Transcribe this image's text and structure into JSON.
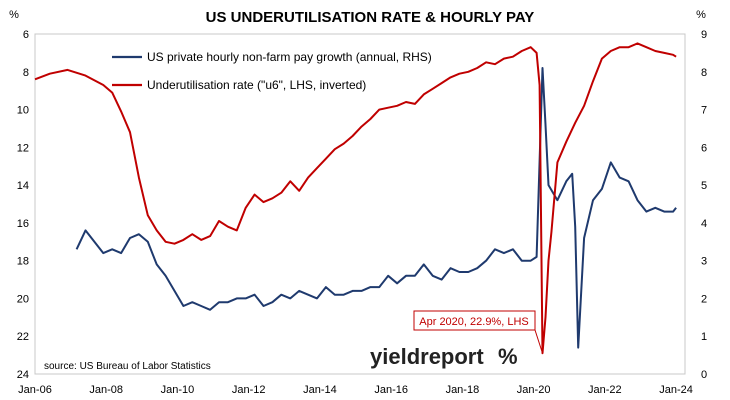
{
  "chart_data": {
    "type": "line",
    "title": "US UNDERUTILISATION RATE & HOURLY PAY",
    "left_axis": {
      "unit": "%",
      "range": [
        6,
        24
      ],
      "inverted": true,
      "ticks": [
        6,
        8,
        10,
        12,
        14,
        16,
        18,
        20,
        22,
        24
      ]
    },
    "right_axis": {
      "unit": "%",
      "range": [
        0,
        9
      ],
      "ticks": [
        0,
        1,
        2,
        3,
        4,
        5,
        6,
        7,
        8,
        9
      ]
    },
    "x_axis": {
      "range": [
        "2006-01",
        "2024-04"
      ],
      "tick_labels": [
        "Jan-06",
        "Jan-08",
        "Jan-10",
        "Jan-12",
        "Jan-14",
        "Jan-16",
        "Jan-18",
        "Jan-20",
        "Jan-22",
        "Jan-24"
      ]
    },
    "grid": false,
    "legend_position": "top-left",
    "series": [
      {
        "name": "US private hourly non-farm pay growth (annual, RHS)",
        "axis": "right",
        "color": "#1f3a6e",
        "points": [
          [
            "2007-03",
            3.3
          ],
          [
            "2007-06",
            3.8
          ],
          [
            "2007-09",
            3.5
          ],
          [
            "2007-12",
            3.2
          ],
          [
            "2008-03",
            3.3
          ],
          [
            "2008-06",
            3.2
          ],
          [
            "2008-09",
            3.6
          ],
          [
            "2008-12",
            3.7
          ],
          [
            "2009-03",
            3.5
          ],
          [
            "2009-06",
            2.9
          ],
          [
            "2009-09",
            2.6
          ],
          [
            "2009-12",
            2.2
          ],
          [
            "2010-03",
            1.8
          ],
          [
            "2010-06",
            1.9
          ],
          [
            "2010-09",
            1.8
          ],
          [
            "2010-12",
            1.7
          ],
          [
            "2011-03",
            1.9
          ],
          [
            "2011-06",
            1.9
          ],
          [
            "2011-09",
            2.0
          ],
          [
            "2011-12",
            2.0
          ],
          [
            "2012-03",
            2.1
          ],
          [
            "2012-06",
            1.8
          ],
          [
            "2012-09",
            1.9
          ],
          [
            "2012-12",
            2.1
          ],
          [
            "2013-03",
            2.0
          ],
          [
            "2013-06",
            2.2
          ],
          [
            "2013-09",
            2.1
          ],
          [
            "2013-12",
            2.0
          ],
          [
            "2014-03",
            2.3
          ],
          [
            "2014-06",
            2.1
          ],
          [
            "2014-09",
            2.1
          ],
          [
            "2014-12",
            2.2
          ],
          [
            "2015-03",
            2.2
          ],
          [
            "2015-06",
            2.3
          ],
          [
            "2015-09",
            2.3
          ],
          [
            "2015-12",
            2.6
          ],
          [
            "2016-03",
            2.4
          ],
          [
            "2016-06",
            2.6
          ],
          [
            "2016-09",
            2.6
          ],
          [
            "2016-12",
            2.9
          ],
          [
            "2017-03",
            2.6
          ],
          [
            "2017-06",
            2.5
          ],
          [
            "2017-09",
            2.8
          ],
          [
            "2017-12",
            2.7
          ],
          [
            "2018-03",
            2.7
          ],
          [
            "2018-06",
            2.8
          ],
          [
            "2018-09",
            3.0
          ],
          [
            "2018-12",
            3.3
          ],
          [
            "2019-03",
            3.2
          ],
          [
            "2019-06",
            3.3
          ],
          [
            "2019-09",
            3.0
          ],
          [
            "2019-12",
            3.0
          ],
          [
            "2020-02",
            3.1
          ],
          [
            "2020-04",
            8.1
          ],
          [
            "2020-05",
            6.6
          ],
          [
            "2020-06",
            5.0
          ],
          [
            "2020-09",
            4.6
          ],
          [
            "2020-12",
            5.1
          ],
          [
            "2021-02",
            5.3
          ],
          [
            "2021-03",
            3.9
          ],
          [
            "2021-04",
            0.7
          ],
          [
            "2021-06",
            3.6
          ],
          [
            "2021-09",
            4.6
          ],
          [
            "2021-12",
            4.9
          ],
          [
            "2022-03",
            5.6
          ],
          [
            "2022-06",
            5.2
          ],
          [
            "2022-09",
            5.1
          ],
          [
            "2022-12",
            4.6
          ],
          [
            "2023-03",
            4.3
          ],
          [
            "2023-06",
            4.4
          ],
          [
            "2023-09",
            4.3
          ],
          [
            "2023-12",
            4.3
          ],
          [
            "2024-01",
            4.4
          ]
        ]
      },
      {
        "name": "Underutilisation rate (\"u6\", LHS, inverted)",
        "axis": "left",
        "color": "#c00000",
        "points": [
          [
            "2006-01",
            8.4
          ],
          [
            "2006-06",
            8.1
          ],
          [
            "2006-12",
            7.9
          ],
          [
            "2007-06",
            8.2
          ],
          [
            "2007-12",
            8.7
          ],
          [
            "2008-03",
            9.1
          ],
          [
            "2008-06",
            10.1
          ],
          [
            "2008-09",
            11.2
          ],
          [
            "2008-12",
            13.6
          ],
          [
            "2009-03",
            15.6
          ],
          [
            "2009-06",
            16.4
          ],
          [
            "2009-09",
            17.0
          ],
          [
            "2009-12",
            17.1
          ],
          [
            "2010-03",
            16.9
          ],
          [
            "2010-06",
            16.6
          ],
          [
            "2010-09",
            16.9
          ],
          [
            "2010-12",
            16.7
          ],
          [
            "2011-03",
            15.9
          ],
          [
            "2011-06",
            16.2
          ],
          [
            "2011-09",
            16.4
          ],
          [
            "2011-12",
            15.2
          ],
          [
            "2012-03",
            14.5
          ],
          [
            "2012-06",
            14.9
          ],
          [
            "2012-09",
            14.7
          ],
          [
            "2012-12",
            14.4
          ],
          [
            "2013-03",
            13.8
          ],
          [
            "2013-06",
            14.3
          ],
          [
            "2013-09",
            13.6
          ],
          [
            "2013-12",
            13.1
          ],
          [
            "2014-03",
            12.6
          ],
          [
            "2014-06",
            12.1
          ],
          [
            "2014-09",
            11.8
          ],
          [
            "2014-12",
            11.4
          ],
          [
            "2015-03",
            10.9
          ],
          [
            "2015-06",
            10.5
          ],
          [
            "2015-09",
            10.0
          ],
          [
            "2015-12",
            9.9
          ],
          [
            "2016-03",
            9.8
          ],
          [
            "2016-06",
            9.6
          ],
          [
            "2016-09",
            9.7
          ],
          [
            "2016-12",
            9.2
          ],
          [
            "2017-03",
            8.9
          ],
          [
            "2017-06",
            8.6
          ],
          [
            "2017-09",
            8.3
          ],
          [
            "2017-12",
            8.1
          ],
          [
            "2018-03",
            8.0
          ],
          [
            "2018-06",
            7.8
          ],
          [
            "2018-09",
            7.5
          ],
          [
            "2018-12",
            7.6
          ],
          [
            "2019-03",
            7.3
          ],
          [
            "2019-06",
            7.2
          ],
          [
            "2019-09",
            6.9
          ],
          [
            "2019-12",
            6.7
          ],
          [
            "2020-02",
            7.0
          ],
          [
            "2020-03",
            8.7
          ],
          [
            "2020-04",
            22.9
          ],
          [
            "2020-05",
            21.0
          ],
          [
            "2020-06",
            18.0
          ],
          [
            "2020-07",
            16.5
          ],
          [
            "2020-09",
            12.8
          ],
          [
            "2020-12",
            11.7
          ],
          [
            "2021-03",
            10.7
          ],
          [
            "2021-06",
            9.8
          ],
          [
            "2021-09",
            8.5
          ],
          [
            "2021-12",
            7.3
          ],
          [
            "2022-03",
            6.9
          ],
          [
            "2022-06",
            6.7
          ],
          [
            "2022-09",
            6.7
          ],
          [
            "2022-12",
            6.5
          ],
          [
            "2023-03",
            6.7
          ],
          [
            "2023-06",
            6.9
          ],
          [
            "2023-09",
            7.0
          ],
          [
            "2023-12",
            7.1
          ],
          [
            "2024-01",
            7.2
          ]
        ]
      }
    ],
    "annotation": {
      "text": "Apr 2020, 22.9%, LHS",
      "x": "2020-04",
      "y": 22.9,
      "axis": "left"
    }
  },
  "source": "source: US Bureau of Labor Statistics",
  "logo": {
    "word": "yieldreport",
    "mark": "%",
    "accent": "#c00000"
  }
}
